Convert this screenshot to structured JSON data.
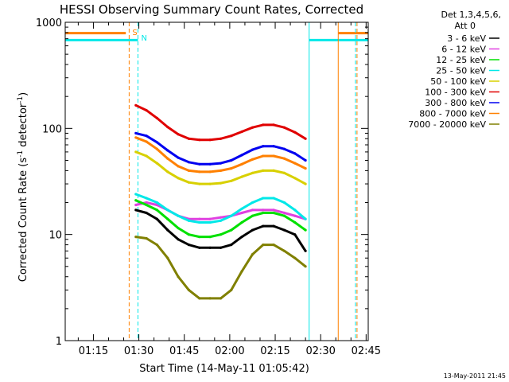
{
  "chart_data": {
    "type": "line",
    "title": "HESSI Observing Summary Count Rates, Corrected",
    "xlabel": "Start Time (14-May-11 01:05:42)",
    "ylabel_main": "Corrected Count Rate (s",
    "ylabel_sup1": "-1",
    "ylabel_mid": " detector",
    "ylabel_sup2": "-1",
    "ylabel_end": ")",
    "ylim": [
      1,
      1000
    ],
    "yscale": "log",
    "y_ticks": [
      {
        "value": 1,
        "label": "1"
      },
      {
        "value": 10,
        "label": "10"
      },
      {
        "value": 100,
        "label": "100"
      },
      {
        "value": 1000,
        "label": "1000"
      }
    ],
    "x_min_minutes": 65.7,
    "x_max_minutes": 165.7,
    "x_ticks": [
      {
        "minutes": 75,
        "label": "01:15"
      },
      {
        "minutes": 90,
        "label": "01:30"
      },
      {
        "minutes": 105,
        "label": "01:45"
      },
      {
        "minutes": 120,
        "label": "02:00"
      },
      {
        "minutes": 135,
        "label": "02:15"
      },
      {
        "minutes": 150,
        "label": "02:30"
      },
      {
        "minutes": 165,
        "label": "02:45"
      }
    ],
    "legend_title_1": "Det 1,3,4,5,6,",
    "legend_title_2": "Att 0",
    "legend_placement": "right",
    "series": [
      {
        "name": "3 - 6 keV",
        "color": "#000000",
        "values": [
          17,
          16,
          14,
          11,
          9,
          8,
          7.5,
          7.5,
          7.5,
          8,
          9.5,
          11,
          12,
          12,
          11,
          10,
          7
        ]
      },
      {
        "name": "6 - 12 keV",
        "color": "#e040e0",
        "values": [
          19,
          20,
          19,
          17,
          15,
          14,
          14,
          14,
          14.5,
          15,
          16,
          17,
          17,
          17,
          16,
          15,
          14
        ]
      },
      {
        "name": "12 - 25 keV",
        "color": "#00e000",
        "values": [
          21,
          19,
          17,
          14,
          11.5,
          10,
          9.5,
          9.5,
          10,
          11,
          13,
          15,
          16,
          16,
          15,
          13,
          11
        ]
      },
      {
        "name": "25 - 50 keV",
        "color": "#00e8e8",
        "values": [
          24,
          22,
          20,
          17,
          15,
          13.5,
          13,
          13,
          13.5,
          15,
          17.5,
          20,
          22,
          22,
          20,
          17,
          14
        ]
      },
      {
        "name": "50 - 100 keV",
        "color": "#d8d000",
        "values": [
          60,
          55,
          47,
          39,
          34,
          31,
          30,
          30,
          30.5,
          32,
          35,
          38,
          40,
          40,
          38,
          34,
          30
        ]
      },
      {
        "name": "100 - 300 keV",
        "color": "#e00000",
        "values": [
          165,
          148,
          125,
          103,
          88,
          80,
          78,
          78,
          80,
          85,
          93,
          102,
          108,
          108,
          102,
          92,
          80
        ]
      },
      {
        "name": "300 - 800 keV",
        "color": "#0000f0",
        "values": [
          90,
          85,
          74,
          62,
          53,
          48,
          46,
          46,
          47,
          50,
          56,
          63,
          68,
          68,
          64,
          58,
          50
        ]
      },
      {
        "name": "800 - 7000 keV",
        "color": "#ff8000",
        "values": [
          82,
          75,
          64,
          52,
          44,
          40,
          39,
          39,
          40,
          42,
          46,
          51,
          55,
          55,
          52,
          47,
          42
        ]
      },
      {
        "name": "7000 - 20000 keV",
        "color": "#808000",
        "values": [
          9.5,
          9.2,
          8,
          6,
          4,
          3,
          2.5,
          2.5,
          2.5,
          3,
          4.5,
          6.5,
          8,
          8,
          7,
          6,
          5
        ]
      }
    ],
    "series_x_minutes": [
      89.0,
      92.5,
      96.0,
      99.5,
      103.0,
      106.5,
      110.0,
      113.5,
      117.0,
      120.5,
      124.0,
      127.5,
      131.0,
      134.5,
      138.0,
      141.5,
      145.0
    ],
    "markers": [
      {
        "label": "S",
        "color": "#ff8000",
        "minutes": 86.8,
        "style": "dashed"
      },
      {
        "label": "N",
        "color": "#00e8e8",
        "minutes": 89.7,
        "style": "dashed"
      },
      {
        "label": "",
        "color": "#00e8e8",
        "minutes": 146.2,
        "style": "solid"
      },
      {
        "label": "",
        "color": "#00e8e8",
        "minutes": 161.5,
        "style": "dashed"
      },
      {
        "label": "",
        "color": "#ff8000",
        "minutes": 155.8,
        "style": "solid"
      },
      {
        "label": "",
        "color": "#ff8000",
        "minutes": 162.0,
        "style": "dashed"
      }
    ],
    "flag_bars": [
      {
        "color": "#ff8000",
        "y_value": 790,
        "from_minutes": 65.7,
        "to_minutes": 85.7
      },
      {
        "color": "#ff8000",
        "y_value": 790,
        "from_minutes": 155.8,
        "to_minutes": 165.7
      },
      {
        "color": "#00e8e8",
        "y_value": 680,
        "from_minutes": 65.7,
        "to_minutes": 89.7
      },
      {
        "color": "#00e8e8",
        "y_value": 680,
        "from_minutes": 146.2,
        "to_minutes": 165.7
      }
    ]
  },
  "footer": {
    "date": "13-May-2011 21:45"
  }
}
